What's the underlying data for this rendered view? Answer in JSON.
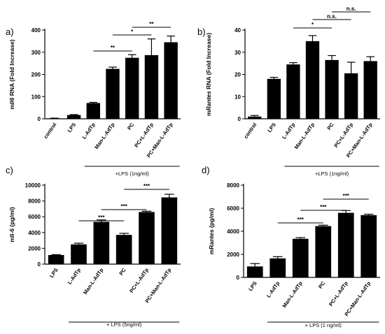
{
  "chart_data": [
    {
      "id": "a",
      "type": "bar",
      "panel_label": "a)",
      "ylabel_prefix": "m",
      "ylabel_italic": "Il6",
      "ylabel_suffix": " RNA (Fold Increase)",
      "ylim": [
        0,
        400
      ],
      "yticks": [
        "0",
        "100",
        "200",
        "300",
        "400"
      ],
      "categories": [
        "control",
        "LPS",
        "L-AdTp",
        "Man-L-AdTp",
        "PC",
        "PC+L-AdTp",
        "PC+Man-L-AdTp"
      ],
      "values": [
        2,
        17,
        71,
        225,
        275,
        287,
        345
      ],
      "errors": [
        1,
        2,
        3,
        8,
        14,
        73,
        28
      ],
      "footnote": "+LPS (1ng/ml)",
      "footnote_span": [
        2,
        6
      ],
      "significance": [
        {
          "from": 2,
          "to": 4,
          "label": "**"
        },
        {
          "from": 3,
          "to": 5,
          "label": "*"
        },
        {
          "from": 4,
          "to": 6,
          "label": "**"
        }
      ]
    },
    {
      "id": "b",
      "type": "bar",
      "panel_label": "b)",
      "ylabel_prefix": "m",
      "ylabel_italic": "Rantes",
      "ylabel_suffix": " RNA (Fold Increase)",
      "ylim": [
        0,
        40
      ],
      "yticks": [
        "0",
        "10",
        "20",
        "30",
        "40"
      ],
      "categories": [
        "control",
        "LPS",
        "L-AdTp",
        "Man-L-AdTp",
        "PC",
        "PC+L-AdTp",
        "PC+Man-L-AdTp"
      ],
      "values": [
        1,
        18,
        24.5,
        35,
        26.5,
        20.5,
        26
      ],
      "errors": [
        0.5,
        0.7,
        0.8,
        2.5,
        2,
        5,
        2
      ],
      "footnote": "+LPS (1ng/ml)",
      "footnote_span": [
        2,
        6
      ],
      "significance": [
        {
          "from": 2,
          "to": 4,
          "label": "*"
        },
        {
          "from": 3,
          "to": 5,
          "label": "n.s."
        },
        {
          "from": 4,
          "to": 6,
          "label": "n.s."
        }
      ]
    },
    {
      "id": "c",
      "type": "bar",
      "panel_label": "c)",
      "ylabel_prefix": "mIl-6 (pg/ml)",
      "ylabel_italic": "",
      "ylabel_suffix": "",
      "ylim": [
        0,
        10000
      ],
      "yticks": [
        "0",
        "2000",
        "4000",
        "6000",
        "8000",
        "10000"
      ],
      "categories": [
        "LPS",
        "L-AdTp",
        "Man-L-AdTp",
        "PC",
        "PC+L-AdTp",
        "PC+Man-L-AdTp"
      ],
      "values": [
        1150,
        2500,
        5350,
        3700,
        6600,
        8450
      ],
      "errors": [
        50,
        150,
        250,
        200,
        100,
        400
      ],
      "footnote": "+ LPS (5ng/ml)",
      "footnote_span": [
        1,
        5
      ],
      "significance": [
        {
          "from": 1,
          "to": 3,
          "label": "***"
        },
        {
          "from": 2,
          "to": 4,
          "label": "***"
        },
        {
          "from": 3,
          "to": 5,
          "label": "***"
        }
      ]
    },
    {
      "id": "d",
      "type": "bar",
      "panel_label": "d)",
      "ylabel_prefix": "mRantes (pg/ml)",
      "ylabel_italic": "",
      "ylabel_suffix": "",
      "ylim": [
        0,
        8000
      ],
      "yticks": [
        "0",
        "2000",
        "4000",
        "6000",
        "8000"
      ],
      "categories": [
        "LPS",
        "L-AdTp",
        "Man-L-AdTp",
        "PC",
        "PC+L-AdTp",
        "PC+Man-L-AdTp"
      ],
      "values": [
        950,
        1650,
        3350,
        4450,
        5600,
        5400
      ],
      "errors": [
        250,
        150,
        100,
        80,
        200,
        80
      ],
      "footnote": "+ LPS (1 ng/ml)",
      "footnote_span": [
        1,
        5
      ],
      "significance": [
        {
          "from": 1,
          "to": 3,
          "label": "***"
        },
        {
          "from": 2,
          "to": 4,
          "label": "***"
        },
        {
          "from": 3,
          "to": 5,
          "label": "***"
        }
      ]
    }
  ]
}
